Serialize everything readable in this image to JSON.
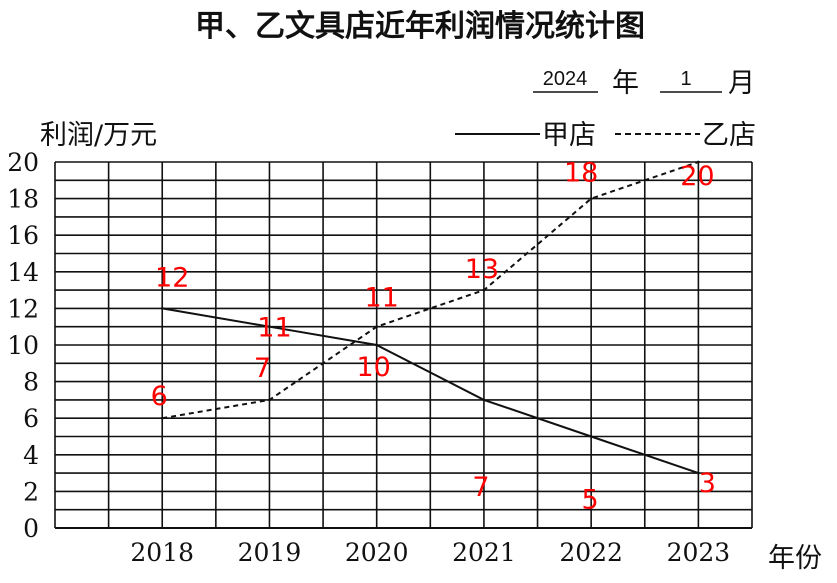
{
  "date": {
    "year": "2024",
    "year_unit": "年",
    "month": "1",
    "month_unit": "月"
  },
  "chart_data": {
    "type": "line",
    "title": "甲、乙文具店近年利润情况统计图",
    "ylabel": "利润/万元",
    "xlabel": "年份",
    "x": [
      "2018",
      "2019",
      "2020",
      "2021",
      "2022",
      "2023"
    ],
    "ylim": [
      0,
      20
    ],
    "yticks": [
      "0",
      "2",
      "4",
      "6",
      "8",
      "10",
      "12",
      "14",
      "16",
      "18",
      "20"
    ],
    "grid": true,
    "legend_position": "top-right",
    "label_color": "#ff0000",
    "series": [
      {
        "name": "甲店",
        "style": "solid",
        "values": [
          12,
          11,
          10,
          7,
          5,
          3
        ],
        "labels": [
          "12",
          "11",
          "10",
          "7",
          "5",
          "3"
        ]
      },
      {
        "name": "乙店",
        "style": "dashed",
        "values": [
          6,
          7,
          11,
          13,
          18,
          20
        ],
        "labels": [
          "6",
          "7",
          "11",
          "13",
          "18",
          "20"
        ]
      }
    ]
  }
}
